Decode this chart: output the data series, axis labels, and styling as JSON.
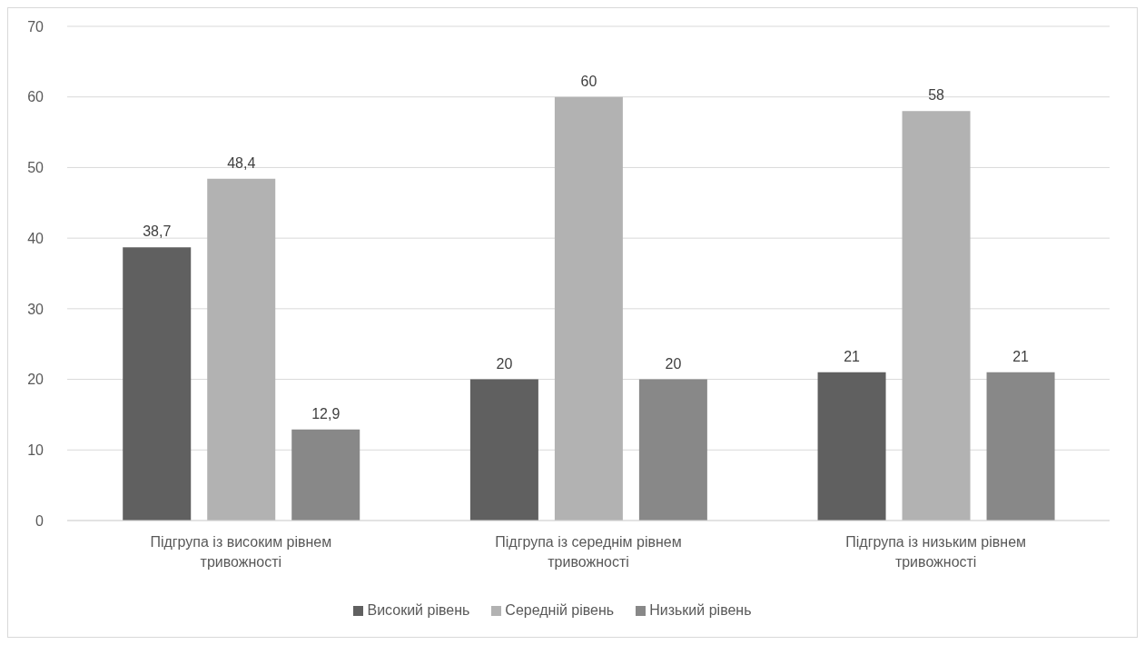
{
  "chart_data": {
    "type": "bar",
    "categories": [
      "Підгрупа із високим рівнем тривожності",
      "Підгрупа із середнім рівнем тривожності",
      "Підгрупа із низьким рівнем тривожності"
    ],
    "series": [
      {
        "name": "Високий рівень",
        "color": "#606060",
        "values": [
          38.7,
          20,
          21
        ],
        "value_labels": [
          "38,7",
          "20",
          "21"
        ]
      },
      {
        "name": "Середній рівень",
        "color": "#b2b2b2",
        "values": [
          48.4,
          60,
          58
        ],
        "value_labels": [
          "48,4",
          "60",
          "58"
        ]
      },
      {
        "name": "Низький рівень",
        "color": "#888888",
        "values": [
          12.9,
          20,
          21
        ],
        "value_labels": [
          "12,9",
          "20",
          "21"
        ]
      }
    ],
    "ylim": [
      0,
      70
    ],
    "yticks": [
      0,
      10,
      20,
      30,
      40,
      50,
      60,
      70
    ],
    "grid": "y",
    "legend": "bottom"
  }
}
